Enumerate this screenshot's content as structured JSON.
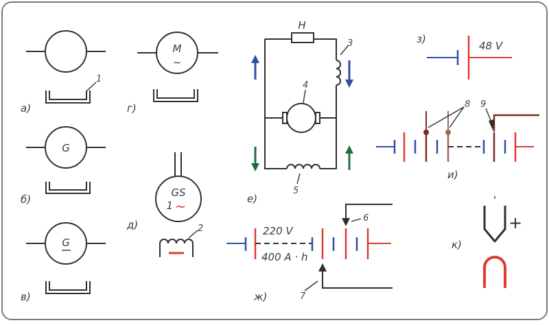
{
  "colors": {
    "frame": "#7a7a7a",
    "ink": "#2f2f2f",
    "blue": "#2c4fa6",
    "red": "#e03a33",
    "green": "#1e6d3d",
    "brown": "#7a2a22",
    "tan": "#9c6a5c"
  },
  "panels": {
    "a": {
      "label": "а)",
      "callout": "1"
    },
    "b": {
      "label": "б)",
      "symbol": "G"
    },
    "v": {
      "label": "в)",
      "symbol": "G"
    },
    "g": {
      "label": "г)",
      "symbol": "M",
      "sub": "~"
    },
    "d": {
      "label": "д)",
      "symbol": "GS",
      "sub_num": "1",
      "sub_wave": "~",
      "callout": "2"
    },
    "e": {
      "label": "е)",
      "resistor": "Н",
      "callout_3": "3",
      "callout_4": "4",
      "callout_5": "5"
    },
    "z": {
      "label": "з)",
      "voltage": "48 V"
    },
    "i": {
      "label": "и)",
      "callout_8": "8",
      "callout_9": "9"
    },
    "zh": {
      "label": "ж)",
      "voltage": "220 V",
      "capacity": "400 A · h",
      "callout_6": "6",
      "callout_7": "7"
    },
    "k": {
      "label": "к)",
      "plus": "+"
    }
  }
}
